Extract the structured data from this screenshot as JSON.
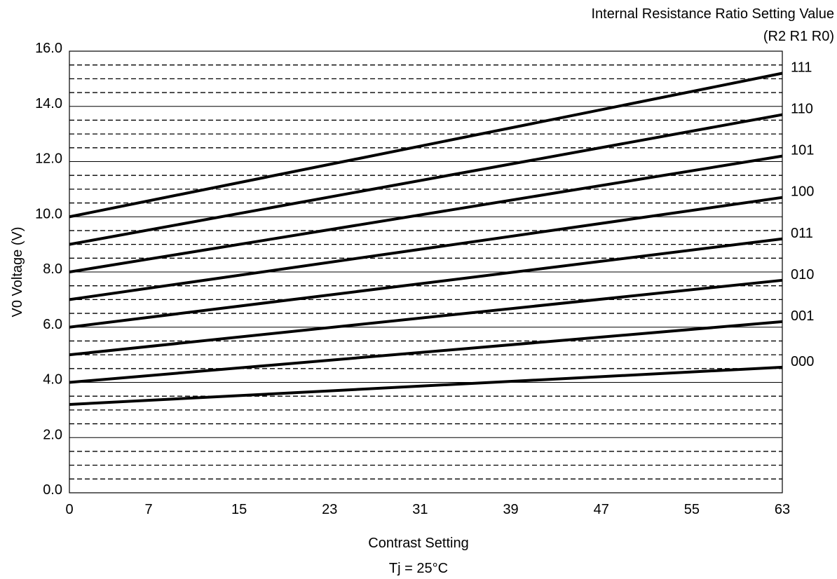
{
  "chart_data": {
    "type": "line",
    "title": "",
    "xlabel": "Contrast Setting",
    "ylabel": "V0 Voltage (V)",
    "note": "Tj = 25°C",
    "legend_title_line1": "Internal Resistance Ratio Setting Value",
    "legend_title_line2": "(R2 R1 R0)",
    "legend_placement": "right",
    "xlim": [
      0,
      63
    ],
    "ylim": [
      0,
      16
    ],
    "x_ticks": [
      0,
      7,
      15,
      23,
      31,
      39,
      47,
      55,
      63
    ],
    "y_ticks": [
      0.0,
      2.0,
      4.0,
      6.0,
      8.0,
      10.0,
      12.0,
      14.0,
      16.0
    ],
    "y_tick_labels": [
      "0.0",
      "2.0",
      "4.0",
      "6.0",
      "8.0",
      "10.0",
      "12.0",
      "14.0",
      "16.0"
    ],
    "grid": true,
    "grid_major_step": 2.0,
    "grid_minor_step": 0.5,
    "series": [
      {
        "name": "000",
        "x": [
          0,
          63
        ],
        "values": [
          3.2,
          4.55
        ]
      },
      {
        "name": "001",
        "x": [
          0,
          63
        ],
        "values": [
          4.0,
          6.2
        ]
      },
      {
        "name": "010",
        "x": [
          0,
          63
        ],
        "values": [
          5.0,
          7.7
        ]
      },
      {
        "name": "011",
        "x": [
          0,
          63
        ],
        "values": [
          6.0,
          9.2
        ]
      },
      {
        "name": "100",
        "x": [
          0,
          63
        ],
        "values": [
          7.0,
          10.7
        ]
      },
      {
        "name": "101",
        "x": [
          0,
          63
        ],
        "values": [
          8.0,
          12.2
        ]
      },
      {
        "name": "110",
        "x": [
          0,
          63
        ],
        "values": [
          9.0,
          13.7
        ]
      },
      {
        "name": "111",
        "x": [
          0,
          63
        ],
        "values": [
          10.0,
          15.2
        ]
      }
    ]
  }
}
